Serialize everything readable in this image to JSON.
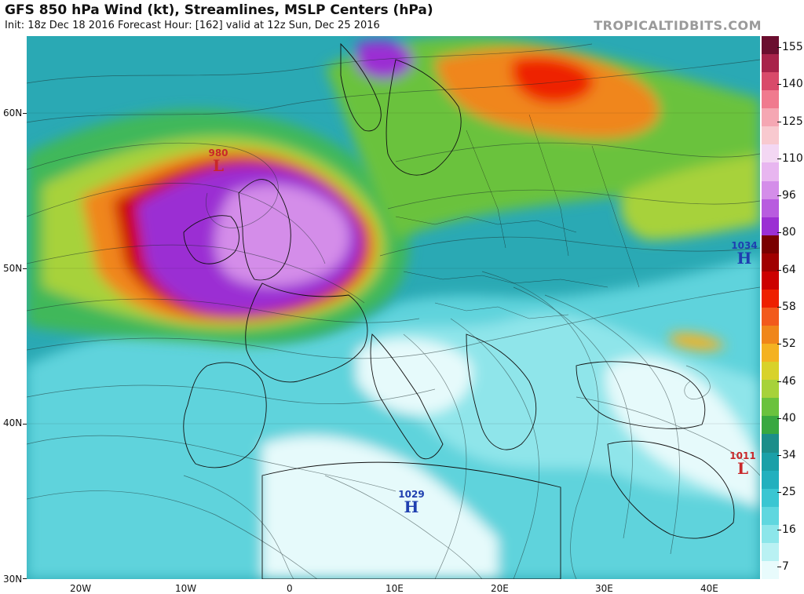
{
  "header": {
    "title": "GFS 850 hPa Wind (kt), Streamlines, MSLP Centers (hPa)",
    "subtitle": "Init: 18z Dec 18 2016   Forecast Hour: [162]   valid at 12z Sun, Dec 25 2016",
    "brand": "TROPICALTIDBITS.COM"
  },
  "axes": {
    "lat_labels": [
      "60N",
      "50N",
      "40N",
      "30N"
    ],
    "lat_values": [
      60,
      50,
      40,
      30
    ],
    "lon_labels": [
      "20W",
      "10W",
      "0",
      "10E",
      "20E",
      "30E",
      "40E"
    ],
    "lon_values": [
      -20,
      -10,
      0,
      10,
      20,
      30,
      40
    ]
  },
  "colorbar": {
    "labels": [
      "155",
      "140",
      "125",
      "110",
      "96",
      "80",
      "64",
      "58",
      "52",
      "46",
      "40",
      "34",
      "25",
      "16",
      "7"
    ],
    "colors": [
      "#6b0e2f",
      "#a8234a",
      "#d94a6a",
      "#f07a8e",
      "#f5a7b3",
      "#f8c9cf",
      "#f3d7f3",
      "#e8b6f0",
      "#d48de9",
      "#b85cdf",
      "#9b2fd3",
      "#7a0000",
      "#a00000",
      "#cc0000",
      "#ee2000",
      "#f25a1c",
      "#f0861a",
      "#f4b221",
      "#d8d22a",
      "#a7d23a",
      "#6ac23d",
      "#38a840",
      "#1c8e8a",
      "#1aa0a8",
      "#23b0be",
      "#3ac6d2",
      "#5fd7df",
      "#8ce6ea",
      "#b9f1f3",
      "#e8fbfc"
    ]
  },
  "pressure_centers": [
    {
      "type": "L",
      "value": "980",
      "color": "#c8282a"
    },
    {
      "type": "H",
      "value": "1034",
      "color": "#1f3fb0"
    },
    {
      "type": "H",
      "value": "1029",
      "color": "#1f3fb0"
    },
    {
      "type": "L",
      "value": "1011",
      "color": "#c8282a"
    }
  ]
}
